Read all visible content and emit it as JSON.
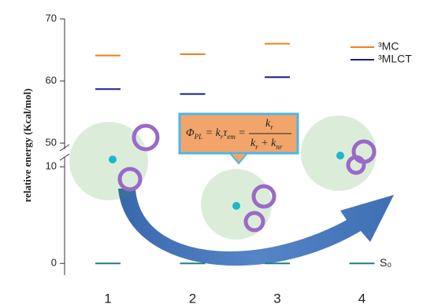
{
  "chart_data": {
    "type": "level",
    "y_label": "relative energy (Kcal/mol)",
    "categories": [
      "1",
      "2",
      "3",
      "4"
    ],
    "series": [
      {
        "name": "³MC",
        "color": "#f07f1e",
        "values": [
          64.1,
          64.3,
          66.0,
          null
        ]
      },
      {
        "name": "³MLCT",
        "color": "#1c1c8e",
        "values": [
          58.7,
          57.9,
          60.6,
          null
        ]
      },
      {
        "name": "S₀",
        "color": "#1f8080",
        "values": [
          0,
          0,
          0,
          0
        ]
      }
    ],
    "ylim": [
      -1.2,
      70
    ],
    "ybreak": [
      11,
      49
    ],
    "yticks": [
      0,
      10,
      50,
      60,
      70
    ],
    "formula": {
      "lhs": [
        "Φ",
        "PL",
        " = k",
        "r",
        "τ",
        "em",
        " ="
      ],
      "numerator": [
        "k",
        "r"
      ],
      "denominator": [
        "k",
        "r",
        " + k",
        "nr"
      ]
    }
  }
}
